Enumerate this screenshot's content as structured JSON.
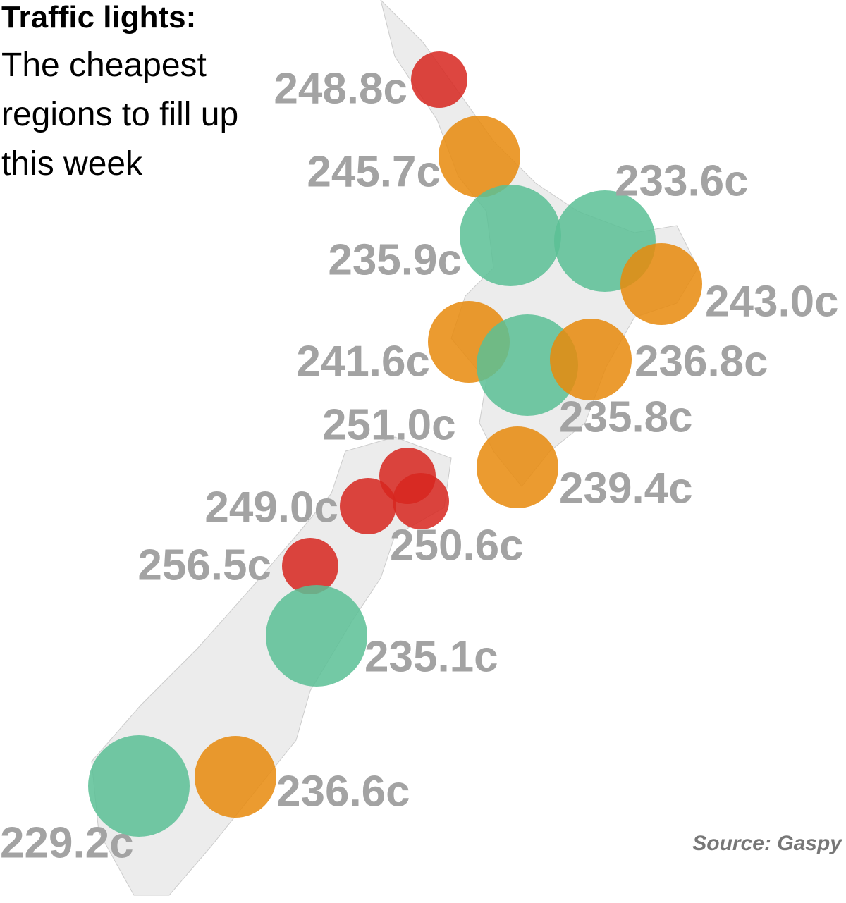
{
  "title": "Traffic lights:",
  "subtitle": "The cheapest regions to fill up this week",
  "source": "Source: Gaspy",
  "regions": [
    {
      "value": 248.8,
      "label": "248.8c",
      "color": "#d7261e"
    },
    {
      "value": 245.7,
      "label": "245.7c",
      "color": "#e8890c"
    },
    {
      "value": 235.9,
      "label": "235.9c",
      "color": "#5bc095"
    },
    {
      "value": 233.6,
      "label": "233.6c",
      "color": "#5bc095"
    },
    {
      "value": 243.0,
      "label": "243.0c",
      "color": "#e8890c"
    },
    {
      "value": 241.6,
      "label": "241.6c",
      "color": "#e8890c"
    },
    {
      "value": 235.8,
      "label": "235.8c",
      "color": "#5bc095"
    },
    {
      "value": 236.8,
      "label": "236.8c",
      "color": "#e8890c"
    },
    {
      "value": 251.0,
      "label": "251.0c",
      "color": "#d7261e"
    },
    {
      "value": 239.4,
      "label": "239.4c",
      "color": "#e8890c"
    },
    {
      "value": 249.0,
      "label": "249.0c",
      "color": "#d7261e"
    },
    {
      "value": 250.6,
      "label": "250.6c",
      "color": "#d7261e"
    },
    {
      "value": 256.5,
      "label": "256.5c",
      "color": "#d7261e"
    },
    {
      "value": 235.1,
      "label": "235.1c",
      "color": "#5bc095"
    },
    {
      "value": 236.6,
      "label": "236.6c",
      "color": "#e8890c"
    },
    {
      "value": 229.2,
      "label": "229.2c",
      "color": "#5bc095"
    }
  ]
}
